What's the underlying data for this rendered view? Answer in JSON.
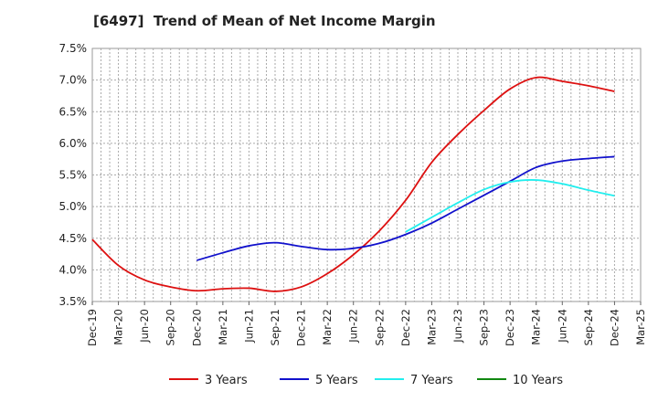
{
  "chart_data": {
    "type": "line",
    "title": "[6497]  Trend of Mean of Net Income Margin",
    "xlabel": "",
    "ylabel": "",
    "x_ticks": [
      "Dec-19",
      "Mar-20",
      "Jun-20",
      "Sep-20",
      "Dec-20",
      "Mar-21",
      "Jun-21",
      "Sep-21",
      "Dec-21",
      "Mar-22",
      "Jun-22",
      "Sep-22",
      "Dec-22",
      "Mar-23",
      "Jun-23",
      "Sep-23",
      "Dec-23",
      "Mar-24",
      "Jun-24",
      "Sep-24",
      "Dec-24",
      "Mar-25"
    ],
    "y_ticks": [
      "3.5%",
      "4.0%",
      "4.5%",
      "5.0%",
      "5.5%",
      "6.0%",
      "6.5%",
      "7.0%",
      "7.5%"
    ],
    "ylim": [
      3.5,
      7.5
    ],
    "grid": true,
    "legend_position": "bottom",
    "series": [
      {
        "name": "3 Years",
        "color": "#dd1111",
        "start_index": 0,
        "values": [
          4.48,
          4.07,
          3.84,
          3.73,
          3.67,
          3.7,
          3.71,
          3.66,
          3.73,
          3.94,
          4.24,
          4.62,
          5.1,
          5.7,
          6.14,
          6.52,
          6.86,
          7.04,
          6.98,
          6.91,
          6.82
        ]
      },
      {
        "name": "5 Years",
        "color": "#1111cc",
        "start_index": 4,
        "values": [
          4.15,
          4.27,
          4.38,
          4.43,
          4.37,
          4.32,
          4.34,
          4.42,
          4.56,
          4.74,
          4.96,
          5.18,
          5.4,
          5.62,
          5.72,
          5.76,
          5.79
        ]
      },
      {
        "name": "7 Years",
        "color": "#22eeee",
        "start_index": 12,
        "values": [
          4.6,
          4.83,
          5.06,
          5.27,
          5.39,
          5.42,
          5.36,
          5.26,
          5.17
        ]
      },
      {
        "name": "10 Years",
        "color": "#118811",
        "start_index": 0,
        "values": []
      }
    ]
  }
}
